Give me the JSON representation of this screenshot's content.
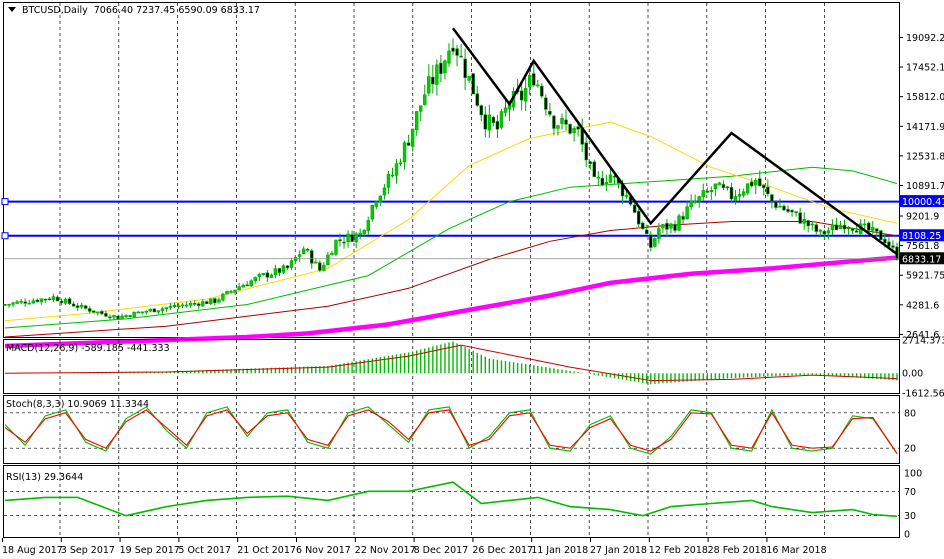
{
  "chart_data": [
    {
      "type": "candlestick",
      "title": "BTCUSD,Daily",
      "ohlc_header": "7066.40 7237.45 6590.09 6833.17",
      "ylim": [
        2500,
        21000
      ],
      "y_ticks": [
        2641.6,
        4281.6,
        5921.75,
        7561.8,
        9201.9,
        10891.7,
        12531.8,
        14171.9,
        15812.0,
        17452.1,
        19092.2
      ],
      "x_labels": [
        "18 Aug 2017",
        "3 Sep 2017",
        "19 Sep 2017",
        "5 Oct 2017",
        "21 Oct 2017",
        "6 Nov 2017",
        "22 Nov 2017",
        "8 Dec 2017",
        "26 Dec 2017",
        "11 Jan 2018",
        "27 Jan 2018",
        "12 Feb 2018",
        "28 Feb 2018",
        "16 Mar 2018"
      ],
      "date_range": [
        "2017-08-18",
        "2018-03-26"
      ],
      "close_price_label": "6833.17",
      "horizontal_levels": [
        {
          "label": "10000.41",
          "value": 10000.41,
          "color": "#0000ff"
        },
        {
          "label": "8108.25",
          "value": 8108.25,
          "color": "#0000ff"
        }
      ],
      "moving_averages": [
        {
          "color": "#ff00ff",
          "desc": "magenta thick",
          "points": [
            [
              0,
              2000
            ],
            [
              60,
              2500
            ],
            [
              75,
              2700
            ],
            [
              95,
              3200
            ],
            [
              115,
              4000
            ],
            [
              135,
              4800
            ],
            [
              150,
              5500
            ],
            [
              170,
              6000
            ],
            [
              190,
              6300
            ],
            [
              210,
              6700
            ],
            [
              221,
              6900
            ]
          ]
        },
        {
          "color": "#aa0000",
          "desc": "red",
          "points": [
            [
              0,
              2500
            ],
            [
              40,
              3100
            ],
            [
              80,
              4200
            ],
            [
              100,
              5200
            ],
            [
              120,
              6800
            ],
            [
              135,
              7800
            ],
            [
              150,
              8400
            ],
            [
              165,
              8700
            ],
            [
              180,
              8900
            ],
            [
              200,
              8900
            ],
            [
              221,
              8100
            ]
          ]
        },
        {
          "color": "#00bb00",
          "desc": "green",
          "points": [
            [
              0,
              3000
            ],
            [
              30,
              3500
            ],
            [
              60,
              4300
            ],
            [
              90,
              5900
            ],
            [
              110,
              8500
            ],
            [
              125,
              10000
            ],
            [
              140,
              10800
            ],
            [
              160,
              11100
            ],
            [
              180,
              11400
            ],
            [
              200,
              11900
            ],
            [
              210,
              11700
            ],
            [
              221,
              11000
            ]
          ]
        },
        {
          "color": "#ffd800",
          "desc": "yellow",
          "points": [
            [
              0,
              3400
            ],
            [
              20,
              3800
            ],
            [
              50,
              4600
            ],
            [
              80,
              6300
            ],
            [
              100,
              9000
            ],
            [
              115,
              12000
            ],
            [
              130,
              13500
            ],
            [
              150,
              14400
            ],
            [
              160,
              13600
            ],
            [
              175,
              11900
            ],
            [
              190,
              10800
            ],
            [
              205,
              9600
            ],
            [
              221,
              8800
            ]
          ]
        }
      ],
      "pattern_lines": [
        [
          [
            111,
            19600
          ],
          [
            125,
            15400
          ],
          [
            131,
            17800
          ],
          [
            160,
            8800
          ],
          [
            180,
            13800
          ],
          [
            221,
            7100
          ]
        ]
      ],
      "price_path": [
        [
          0,
          4300
        ],
        [
          12,
          4700
        ],
        [
          18,
          4200
        ],
        [
          24,
          3800
        ],
        [
          28,
          3600
        ],
        [
          34,
          3900
        ],
        [
          42,
          4200
        ],
        [
          52,
          4500
        ],
        [
          58,
          5300
        ],
        [
          64,
          5900
        ],
        [
          70,
          6300
        ],
        [
          74,
          7400
        ],
        [
          78,
          6200
        ],
        [
          82,
          7800
        ],
        [
          88,
          8200
        ],
        [
          92,
          10300
        ],
        [
          96,
          11500
        ],
        [
          100,
          13500
        ],
        [
          104,
          16000
        ],
        [
          108,
          17500
        ],
        [
          111,
          19000
        ],
        [
          116,
          16200
        ],
        [
          119,
          14500
        ],
        [
          122,
          14000
        ],
        [
          125,
          15500
        ],
        [
          128,
          15800
        ],
        [
          131,
          17000
        ],
        [
          136,
          14500
        ],
        [
          142,
          13800
        ],
        [
          146,
          11000
        ],
        [
          150,
          11500
        ],
        [
          155,
          10000
        ],
        [
          158,
          8400
        ],
        [
          160,
          7500
        ],
        [
          162,
          8500
        ],
        [
          166,
          8700
        ],
        [
          170,
          9800
        ],
        [
          176,
          10800
        ],
        [
          180,
          10300
        ],
        [
          186,
          11200
        ],
        [
          190,
          10000
        ],
        [
          196,
          9200
        ],
        [
          202,
          8200
        ],
        [
          208,
          8800
        ],
        [
          214,
          8400
        ],
        [
          218,
          7900
        ],
        [
          221,
          7000
        ]
      ]
    },
    {
      "type": "histogram",
      "title": "MACD(12,26,9) -589.185 -441.333",
      "ylim": [
        -1612.561,
        2714.373
      ],
      "y_ticks": [
        2714.373,
        0.0,
        -1612.561
      ],
      "histogram": [
        [
          0,
          0
        ],
        [
          40,
          150
        ],
        [
          80,
          600
        ],
        [
          100,
          1700
        ],
        [
          111,
          2600
        ],
        [
          120,
          1200
        ],
        [
          140,
          200
        ],
        [
          160,
          -900
        ],
        [
          180,
          -400
        ],
        [
          200,
          -100
        ],
        [
          221,
          -580
        ]
      ],
      "signal": [
        [
          0,
          0
        ],
        [
          40,
          100
        ],
        [
          80,
          500
        ],
        [
          100,
          1400
        ],
        [
          113,
          2300
        ],
        [
          125,
          1500
        ],
        [
          140,
          500
        ],
        [
          160,
          -600
        ],
        [
          180,
          -500
        ],
        [
          200,
          -150
        ],
        [
          221,
          -440
        ]
      ]
    },
    {
      "type": "line",
      "title": "Stoch(8,3,3) 10.9069 11.3344",
      "ylim": [
        0,
        100
      ],
      "y_ticks": [
        80,
        20
      ],
      "series": [
        {
          "name": "",
          "color": "#00bb00",
          "points": [
            [
              0,
              60
            ],
            [
              5,
              25
            ],
            [
              10,
              75
            ],
            [
              15,
              85
            ],
            [
              20,
              30
            ],
            [
              25,
              15
            ],
            [
              30,
              70
            ],
            [
              35,
              90
            ],
            [
              40,
              50
            ],
            [
              45,
              20
            ],
            [
              50,
              80
            ],
            [
              55,
              90
            ],
            [
              60,
              40
            ],
            [
              65,
              80
            ],
            [
              70,
              85
            ],
            [
              75,
              30
            ],
            [
              80,
              20
            ],
            [
              85,
              80
            ],
            [
              90,
              90
            ],
            [
              95,
              60
            ],
            [
              100,
              30
            ],
            [
              105,
              85
            ],
            [
              110,
              90
            ],
            [
              115,
              20
            ],
            [
              120,
              40
            ],
            [
              125,
              80
            ],
            [
              130,
              85
            ],
            [
              135,
              20
            ],
            [
              140,
              15
            ],
            [
              145,
              60
            ],
            [
              150,
              75
            ],
            [
              155,
              20
            ],
            [
              160,
              10
            ],
            [
              165,
              40
            ],
            [
              170,
              85
            ],
            [
              175,
              80
            ],
            [
              180,
              20
            ],
            [
              185,
              15
            ],
            [
              190,
              85
            ],
            [
              195,
              20
            ],
            [
              200,
              15
            ],
            [
              205,
              20
            ],
            [
              210,
              75
            ],
            [
              215,
              70
            ],
            [
              221,
              11
            ]
          ]
        },
        {
          "name": "",
          "color": "#ff0000",
          "points": [
            [
              0,
              55
            ],
            [
              5,
              30
            ],
            [
              10,
              70
            ],
            [
              15,
              80
            ],
            [
              20,
              35
            ],
            [
              25,
              20
            ],
            [
              30,
              65
            ],
            [
              35,
              85
            ],
            [
              40,
              55
            ],
            [
              45,
              25
            ],
            [
              50,
              75
            ],
            [
              55,
              85
            ],
            [
              60,
              45
            ],
            [
              65,
              75
            ],
            [
              70,
              80
            ],
            [
              75,
              35
            ],
            [
              80,
              25
            ],
            [
              85,
              75
            ],
            [
              90,
              85
            ],
            [
              95,
              65
            ],
            [
              100,
              35
            ],
            [
              105,
              80
            ],
            [
              110,
              85
            ],
            [
              115,
              25
            ],
            [
              120,
              35
            ],
            [
              125,
              75
            ],
            [
              130,
              80
            ],
            [
              135,
              25
            ],
            [
              140,
              20
            ],
            [
              145,
              55
            ],
            [
              150,
              70
            ],
            [
              155,
              25
            ],
            [
              160,
              15
            ],
            [
              165,
              35
            ],
            [
              170,
              80
            ],
            [
              175,
              78
            ],
            [
              180,
              25
            ],
            [
              185,
              20
            ],
            [
              190,
              80
            ],
            [
              195,
              25
            ],
            [
              200,
              20
            ],
            [
              205,
              22
            ],
            [
              210,
              70
            ],
            [
              215,
              72
            ],
            [
              221,
              11
            ]
          ]
        }
      ]
    },
    {
      "type": "line",
      "title": "RSI(13) 29.3644",
      "ylim": [
        0,
        100
      ],
      "y_ticks": [
        100,
        70,
        30,
        0
      ],
      "series": [
        {
          "name": "",
          "color": "#00bb00",
          "points": [
            [
              0,
              55
            ],
            [
              10,
              60
            ],
            [
              18,
              60
            ],
            [
              26,
              40
            ],
            [
              30,
              30
            ],
            [
              40,
              45
            ],
            [
              50,
              55
            ],
            [
              60,
              60
            ],
            [
              70,
              62
            ],
            [
              80,
              55
            ],
            [
              90,
              70
            ],
            [
              100,
              70
            ],
            [
              111,
              85
            ],
            [
              118,
              50
            ],
            [
              125,
              55
            ],
            [
              132,
              60
            ],
            [
              140,
              45
            ],
            [
              150,
              40
            ],
            [
              158,
              30
            ],
            [
              165,
              45
            ],
            [
              175,
              50
            ],
            [
              185,
              55
            ],
            [
              190,
              45
            ],
            [
              200,
              35
            ],
            [
              210,
              40
            ],
            [
              215,
              32
            ],
            [
              221,
              29
            ]
          ]
        }
      ]
    }
  ]
}
